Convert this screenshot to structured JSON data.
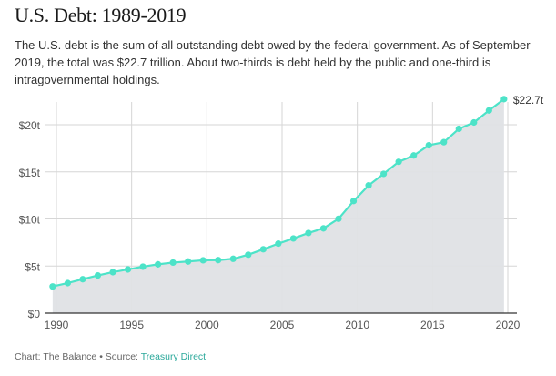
{
  "title": "U.S. Debt: 1989-2019",
  "description": "The U.S. debt is the sum of all outstanding debt owed by the federal government. As of September 2019, the total was $22.7 trillion. About two-thirds is debt held by the public and one-third is intragovernmental holdings.",
  "footer": {
    "credit": "Chart: The Balance • Source: ",
    "source_link": "Treasury Direct"
  },
  "colors": {
    "line": "#4de3c8",
    "area": "#dfe1e5",
    "grid": "#d6d6d6",
    "axis": "#333333",
    "link": "#2aa89a"
  },
  "chart_data": {
    "type": "area",
    "title": "U.S. Debt: 1989-2019",
    "x": [
      1989,
      1990,
      1991,
      1992,
      1993,
      1994,
      1995,
      1996,
      1997,
      1998,
      1999,
      2000,
      2001,
      2002,
      2003,
      2004,
      2005,
      2006,
      2007,
      2008,
      2009,
      2010,
      2011,
      2012,
      2013,
      2014,
      2015,
      2016,
      2017,
      2018,
      2019
    ],
    "values": [
      2.83,
      3.19,
      3.6,
      4.0,
      4.35,
      4.64,
      4.93,
      5.18,
      5.37,
      5.48,
      5.61,
      5.63,
      5.77,
      6.2,
      6.78,
      7.38,
      7.93,
      8.51,
      9.0,
      10.02,
      11.9,
      13.56,
      14.79,
      16.07,
      16.74,
      17.82,
      18.15,
      19.57,
      20.24,
      21.52,
      22.72
    ],
    "unit": "trillions USD, as of September",
    "xlim": [
      1989.5,
      2020
    ],
    "ylim": [
      0,
      22.7
    ],
    "x_ticks": [
      1990,
      1995,
      2000,
      2005,
      2010,
      2015,
      2020
    ],
    "y_ticks": [
      0,
      5,
      10,
      15,
      20
    ],
    "y_tick_labels": [
      "$0",
      "$5t",
      "$10t",
      "$15t",
      "$20t"
    ],
    "end_label": "$22.7t",
    "grid": true,
    "legend": "none"
  }
}
